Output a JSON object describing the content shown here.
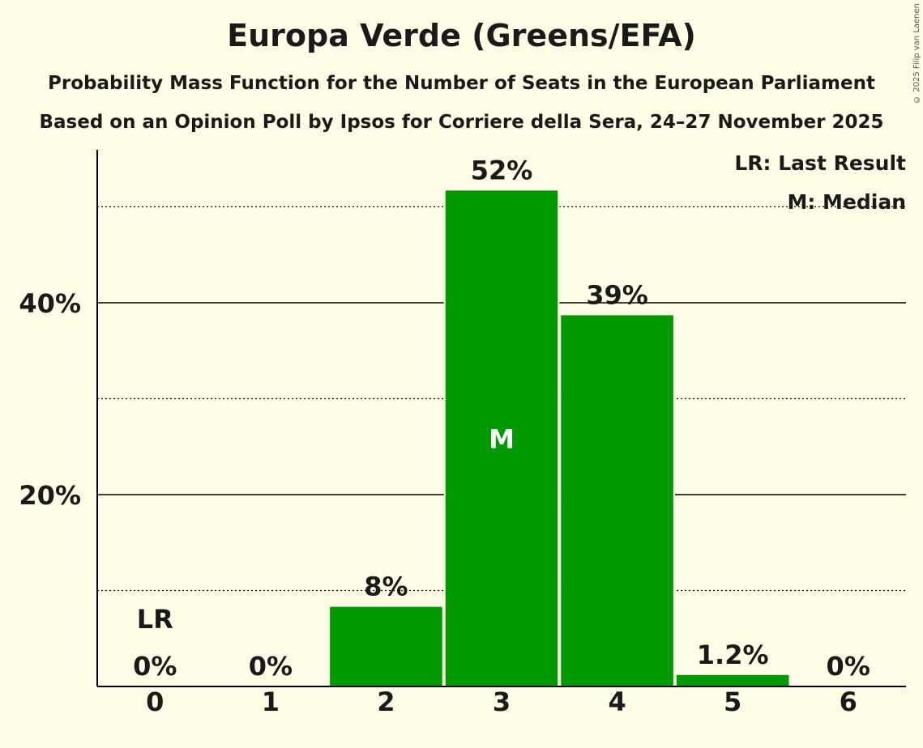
{
  "title": "Europa Verde (Greens/EFA)",
  "subtitle1": "Probability Mass Function for the Number of Seats in the European Parliament",
  "subtitle2": "Based on an Opinion Poll by Ipsos for Corriere della Sera, 24–27 November 2025",
  "copyright": "© 2025 Filip van Laenen",
  "chart_data": {
    "type": "bar",
    "categories": [
      "0",
      "1",
      "2",
      "3",
      "4",
      "5",
      "6"
    ],
    "values": [
      0,
      0,
      8.3,
      51.7,
      38.7,
      1.2,
      0
    ],
    "value_labels": [
      "0%",
      "0%",
      "8%",
      "52%",
      "39%",
      "1.2%",
      "0%"
    ],
    "ylim": [
      0,
      56
    ],
    "yticks": [
      20,
      40
    ],
    "ytick_labels": [
      "20%",
      "40%"
    ],
    "minor_gridlines": [
      10,
      30,
      50
    ],
    "last_result_index": 0,
    "median_index": 3,
    "last_result_marker": "LR",
    "median_marker": "M",
    "legend": [
      "LR: Last Result",
      "M: Median"
    ],
    "bar_color": "#009900"
  }
}
